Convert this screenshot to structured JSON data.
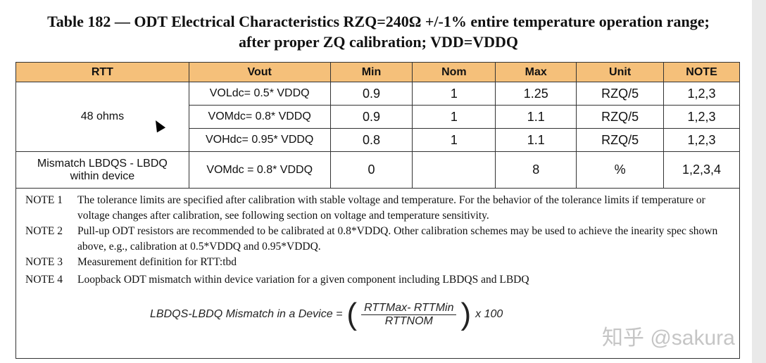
{
  "title_line1": "Table 182 — ODT Electrical Characteristics RZQ=240Ω +/-1% entire temperature operation range;",
  "title_line2": "after proper ZQ calibration; VDD=VDDQ",
  "headers": [
    "RTT",
    "Vout",
    "Min",
    "Nom",
    "Max",
    "Unit",
    "NOTE"
  ],
  "rows": [
    {
      "rtt": "48 ohms",
      "vout": "VOLdc= 0.5* VDDQ",
      "min": "0.9",
      "nom": "1",
      "max": "1.25",
      "unit": "RZQ/5",
      "note": "1,2,3"
    },
    {
      "vout": "VOMdc= 0.8* VDDQ",
      "min": "0.9",
      "nom": "1",
      "max": "1.1",
      "unit": "RZQ/5",
      "note": "1,2,3"
    },
    {
      "vout": "VOHdc= 0.95* VDDQ",
      "min": "0.8",
      "nom": "1",
      "max": "1.1",
      "unit": "RZQ/5",
      "note": "1,2,3"
    },
    {
      "rtt": "Mismatch LBDQS - LBDQ within device",
      "vout": "VOMdc = 0.8* VDDQ",
      "min": "0",
      "nom": "",
      "max": "8",
      "unit": "%",
      "note": "1,2,3,4"
    }
  ],
  "notes": [
    {
      "label": "NOTE 1",
      "text": "The tolerance limits are specified after calibration with stable voltage and temperature. For the behavior of the tolerance limits if temperature or voltage changes after calibration, see following section on voltage and temperature sensitivity."
    },
    {
      "label": "NOTE 2",
      "text": "Pull-up ODT resistors are recommended to be calibrated at 0.8*VDDQ. Other calibration schemes may be used to achieve the inearity spec shown above, e.g., calibration at 0.5*VDDQ and 0.95*VDDQ."
    },
    {
      "label": "NOTE 3",
      "text": "Measurement definition for RTT:tbd"
    },
    {
      "label": "NOTE 4",
      "text": "Loopback ODT mismatch within device variation for a given component including LBDQS and LBDQ"
    }
  ],
  "formula": {
    "lhs": "LBDQS-LBDQ Mismatch in a Device =",
    "numerator": "RTTMax- RTTMin",
    "denominator": "RTTNOM",
    "factor": "x 100"
  },
  "watermark": "知乎 @sakura"
}
